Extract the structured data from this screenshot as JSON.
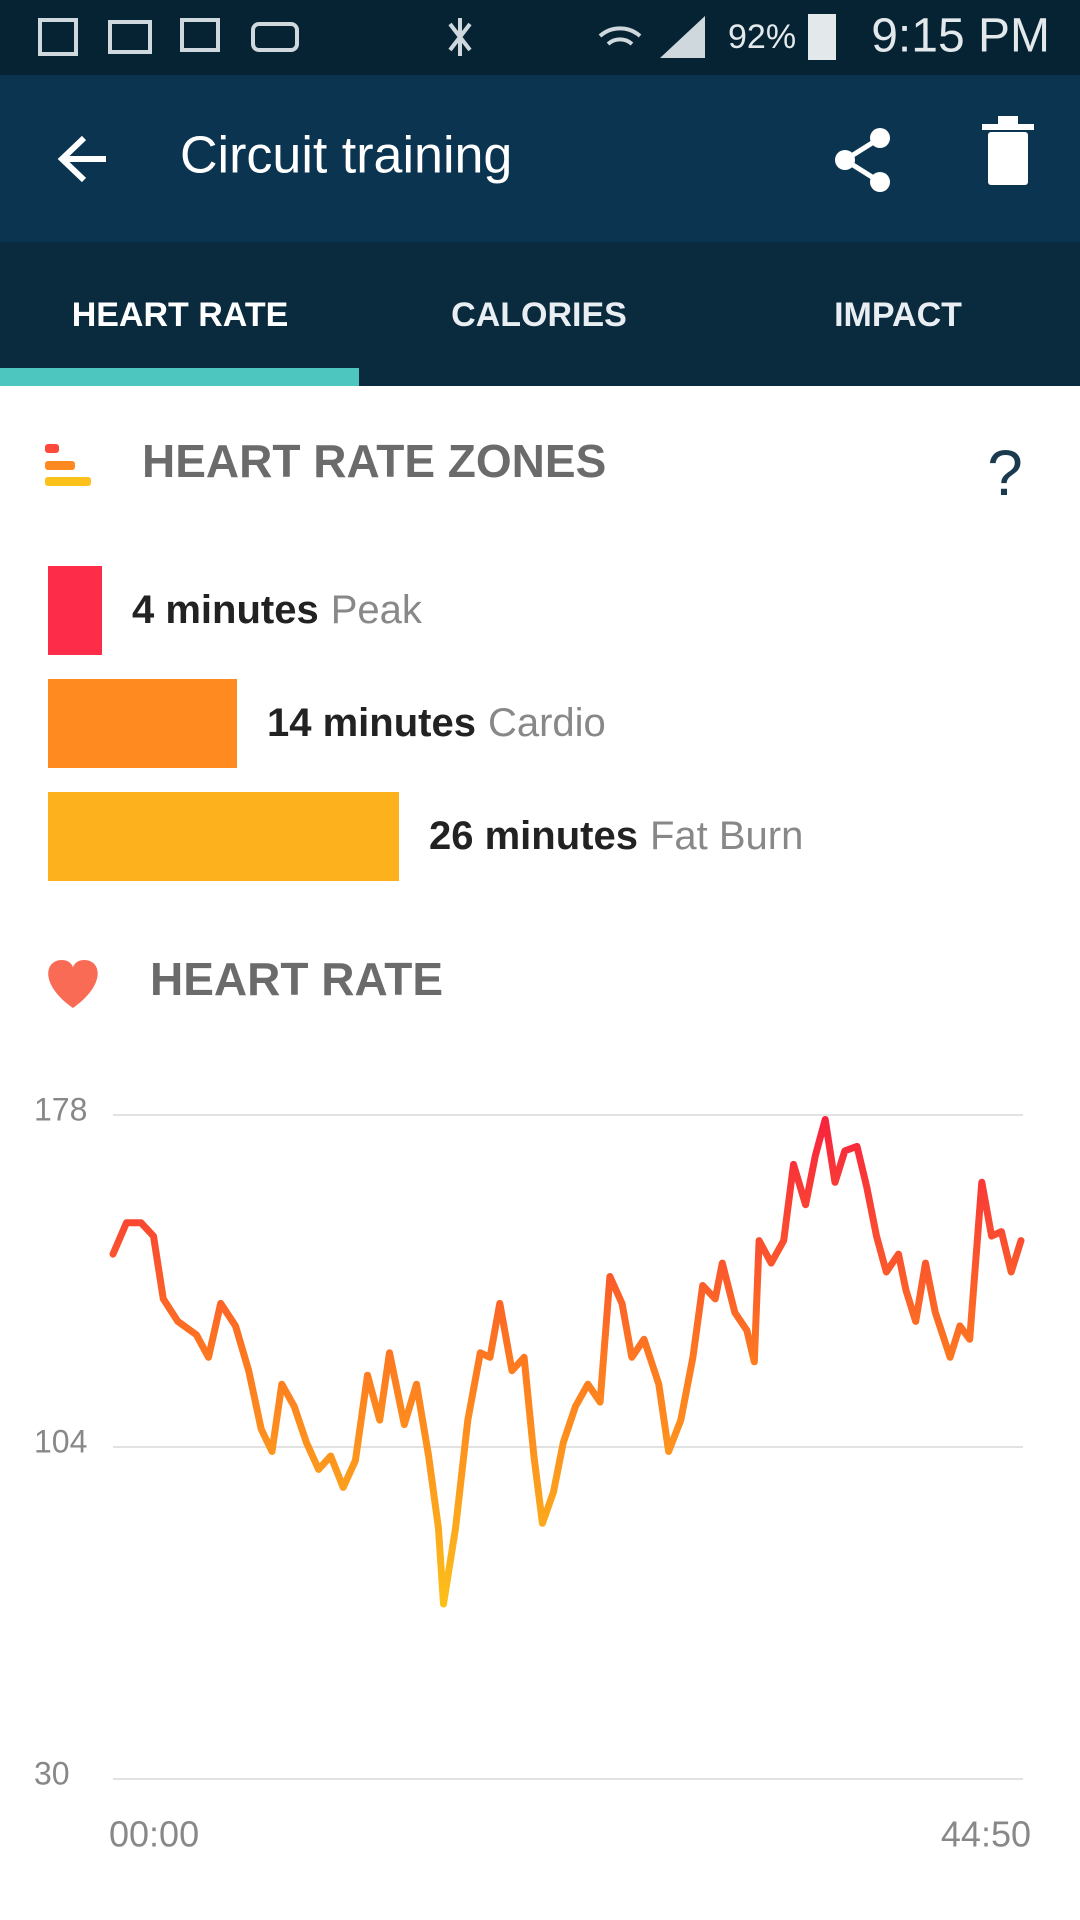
{
  "status_bar": {
    "battery": "92%",
    "time": "9:15 PM"
  },
  "app_bar": {
    "title": "Circuit training"
  },
  "tabs": [
    "HEART RATE",
    "CALORIES",
    "IMPACT"
  ],
  "zones": {
    "title": "HEART RATE ZONES",
    "help": "?",
    "categories": [
      "Peak",
      "Cardio",
      "Fat Burn"
    ],
    "values": [
      4,
      14,
      26
    ],
    "value_labels": [
      "4 minutes",
      "14 minutes",
      "26 minutes"
    ],
    "colors": [
      "#fd2d4a",
      "#fe8a20",
      "#fdb11c"
    ]
  },
  "chart_data": {
    "type": "line",
    "title": "HEART RATE",
    "x": [
      0,
      40,
      83,
      120,
      149,
      192,
      247,
      283,
      319,
      363,
      402,
      439,
      471,
      500,
      537,
      573,
      609,
      645,
      682,
      718,
      754,
      790,
      819,
      863,
      899,
      935,
      964,
      979,
      1015,
      1051,
      1088,
      1117,
      1146,
      1182,
      1218,
      1247,
      1272,
      1305,
      1334,
      1370,
      1407,
      1443,
      1472,
      1508,
      1537,
      1573,
      1617,
      1646,
      1682,
      1718,
      1747,
      1784,
      1805,
      1842,
      1878,
      1900,
      1914,
      1950,
      1987,
      2016,
      2052,
      2081,
      2110,
      2139,
      2168,
      2204,
      2233,
      2262,
      2291,
      2327,
      2349,
      2378,
      2407,
      2436,
      2480,
      2509,
      2538,
      2574,
      2603,
      2632,
      2661,
      2690
    ],
    "values": [
      147,
      154,
      154,
      151,
      137,
      132,
      129,
      124,
      136,
      131,
      121,
      108,
      103,
      118,
      113,
      105,
      99,
      102,
      95,
      101,
      120,
      110,
      125,
      109,
      118,
      102,
      86,
      69,
      86,
      110,
      125,
      124,
      136,
      121,
      124,
      102,
      87,
      94,
      105,
      113,
      118,
      114,
      142,
      136,
      124,
      128,
      118,
      103,
      110,
      124,
      140,
      137,
      145,
      134,
      130,
      123,
      150,
      145,
      150,
      167,
      158,
      169,
      177,
      163,
      170,
      171,
      162,
      151,
      143,
      147,
      139,
      132,
      145,
      134,
      124,
      131,
      128,
      163,
      151,
      152,
      143,
      150
    ],
    "ylim": [
      30,
      178
    ],
    "yticks": [
      30,
      104,
      178
    ],
    "xlim": [
      0,
      2690
    ],
    "xticks": [
      {
        "value": 0,
        "label": "00:00"
      },
      {
        "value": 2690,
        "label": "44:50"
      }
    ],
    "grid": true,
    "color_stops": [
      "#f7213f",
      "#fd7a20",
      "#fcc11a"
    ]
  }
}
